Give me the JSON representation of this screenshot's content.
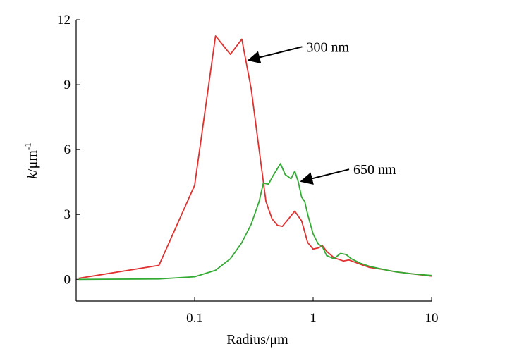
{
  "chart_data": {
    "type": "line",
    "xlabel": "Radius/μm",
    "ylabel_main": "k",
    "ylabel_unit": "/μm",
    "ylabel_exp": "-1",
    "x_scale": "log",
    "xlim": [
      0.01,
      10
    ],
    "ylim": [
      -1,
      12
    ],
    "x_ticks": [
      0.1,
      1,
      10
    ],
    "x_tick_labels": [
      "0.1",
      "1",
      "10"
    ],
    "y_ticks": [
      0,
      3,
      6,
      9,
      12
    ],
    "y_tick_labels": [
      "0",
      "3",
      "6",
      "9",
      "12"
    ],
    "grid": false,
    "series": [
      {
        "name": "300 nm",
        "color": "#e03030",
        "points": [
          [
            0.0105,
            0.05
          ],
          [
            0.05,
            0.65
          ],
          [
            0.1,
            4.35
          ],
          [
            0.15,
            11.25
          ],
          [
            0.2,
            10.4
          ],
          [
            0.25,
            11.1
          ],
          [
            0.3,
            8.8
          ],
          [
            0.35,
            6.0
          ],
          [
            0.4,
            3.6
          ],
          [
            0.45,
            2.8
          ],
          [
            0.5,
            2.5
          ],
          [
            0.55,
            2.45
          ],
          [
            0.6,
            2.7
          ],
          [
            0.7,
            3.15
          ],
          [
            0.8,
            2.7
          ],
          [
            0.9,
            1.7
          ],
          [
            1.0,
            1.4
          ],
          [
            1.1,
            1.45
          ],
          [
            1.2,
            1.55
          ],
          [
            1.3,
            1.3
          ],
          [
            1.5,
            1.0
          ],
          [
            1.8,
            0.85
          ],
          [
            2.0,
            0.9
          ],
          [
            2.5,
            0.7
          ],
          [
            3.0,
            0.55
          ],
          [
            4.0,
            0.45
          ],
          [
            5.0,
            0.35
          ],
          [
            7.0,
            0.25
          ],
          [
            10.0,
            0.15
          ]
        ]
      },
      {
        "name": "650 nm",
        "color": "#33aa33",
        "points": [
          [
            0.0105,
            0.0
          ],
          [
            0.05,
            0.02
          ],
          [
            0.1,
            0.12
          ],
          [
            0.15,
            0.42
          ],
          [
            0.2,
            0.95
          ],
          [
            0.25,
            1.7
          ],
          [
            0.3,
            2.55
          ],
          [
            0.35,
            3.6
          ],
          [
            0.38,
            4.45
          ],
          [
            0.42,
            4.4
          ],
          [
            0.46,
            4.8
          ],
          [
            0.53,
            5.35
          ],
          [
            0.58,
            4.85
          ],
          [
            0.65,
            4.65
          ],
          [
            0.7,
            5.0
          ],
          [
            0.75,
            4.5
          ],
          [
            0.8,
            3.8
          ],
          [
            0.85,
            3.6
          ],
          [
            0.9,
            3.0
          ],
          [
            1.0,
            2.1
          ],
          [
            1.1,
            1.65
          ],
          [
            1.2,
            1.5
          ],
          [
            1.3,
            1.1
          ],
          [
            1.5,
            0.95
          ],
          [
            1.7,
            1.2
          ],
          [
            1.9,
            1.15
          ],
          [
            2.1,
            0.95
          ],
          [
            2.5,
            0.75
          ],
          [
            3.0,
            0.6
          ],
          [
            4.0,
            0.45
          ],
          [
            5.0,
            0.35
          ],
          [
            7.0,
            0.25
          ],
          [
            10.0,
            0.18
          ]
        ]
      }
    ],
    "annotations": [
      {
        "text": "300 nm",
        "target": [
          0.27,
          10.1
        ]
      },
      {
        "text": "650 nm",
        "target": [
          0.75,
          4.5
        ]
      }
    ]
  }
}
